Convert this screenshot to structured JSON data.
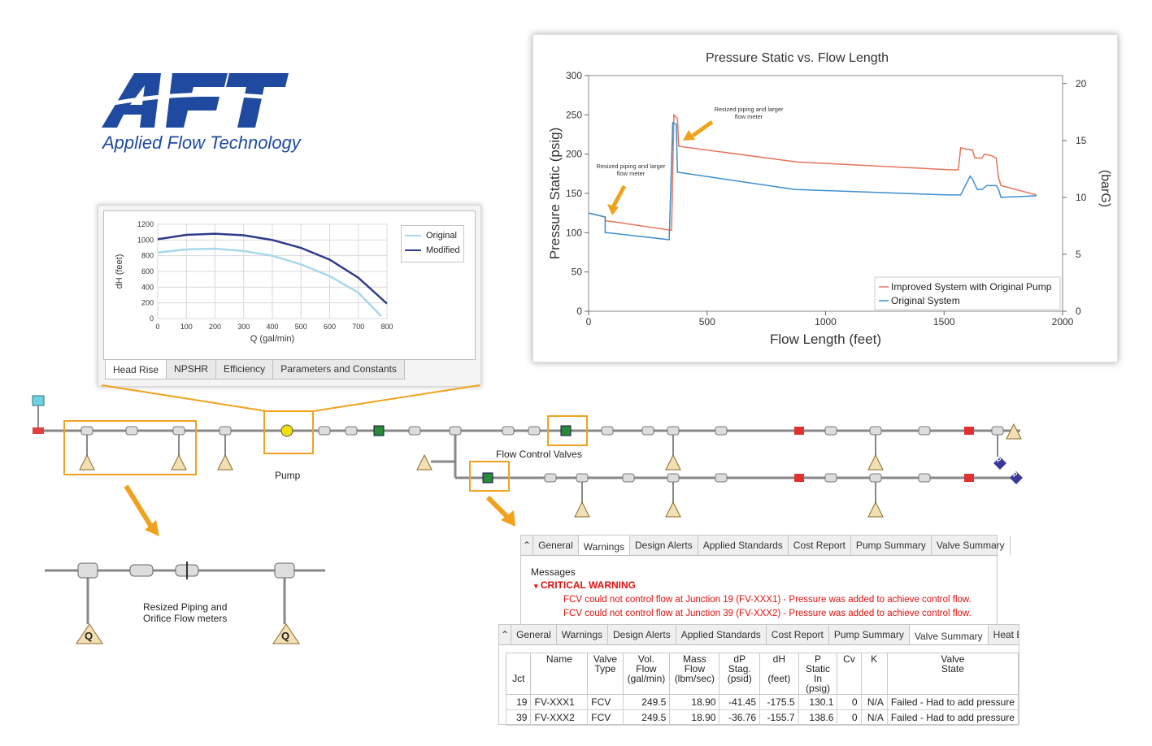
{
  "logo": {
    "brand_text": "AFT",
    "tagline": "Applied Flow Technology"
  },
  "pump_curve": {
    "tabs": [
      "Head Rise",
      "NPSHR",
      "Efficiency",
      "Parameters and Constants"
    ],
    "active_tab": "Head Rise",
    "legend": [
      "Original",
      "Modified"
    ],
    "colors": {
      "original": "#a8d8ea",
      "modified": "#2e3a8c"
    }
  },
  "schematic": {
    "pump_label": "Pump",
    "fcv_label": "Flow Control Valves",
    "detail_label_line1": "Resized Piping and",
    "detail_label_line2": "Orifice Flow meters",
    "orifice_symbol": "Q",
    "pressure_symbol": "P",
    "accent": "#f0a21f"
  },
  "messages_panel": {
    "tabs": [
      "General",
      "Warnings",
      "Design Alerts",
      "Applied Standards",
      "Cost Report",
      "Pump Summary",
      "Valve Summary"
    ],
    "active_tab": "Warnings",
    "heading": "Messages",
    "critical_label": "CRITICAL WARNING",
    "messages": [
      "FCV could not control flow at Junction 19 (FV-XXX1) - Pressure was added to achieve control flow.",
      "FCV could not control flow at Junction 39 (FV-XXX2) - Pressure was added to achieve control flow."
    ]
  },
  "valve_panel": {
    "tabs": [
      "General",
      "Warnings",
      "Design Alerts",
      "Applied Standards",
      "Cost Report",
      "Pump Summary",
      "Valve Summary",
      "Heat Excl"
    ],
    "active_tab": "Valve Summary",
    "columns": [
      [
        "",
        "",
        "Jct"
      ],
      [
        "Name",
        "",
        ""
      ],
      [
        "Valve",
        "Type",
        ""
      ],
      [
        "Vol.",
        "Flow",
        "(gal/min)"
      ],
      [
        "Mass",
        "Flow",
        "(lbm/sec)"
      ],
      [
        "dP",
        "Stag.",
        "(psid)"
      ],
      [
        "dH",
        "",
        "(feet)"
      ],
      [
        "P Static",
        "In",
        "(psig)"
      ],
      [
        "Cv",
        "",
        ""
      ],
      [
        "K",
        "",
        ""
      ],
      [
        "Valve",
        "State",
        ""
      ]
    ],
    "rows": [
      [
        "19",
        "FV-XXX1",
        "FCV",
        "249.5",
        "18.90",
        "-41.45",
        "-175.5",
        "130.1",
        "0",
        "N/A",
        "Failed - Had to add pressure"
      ],
      [
        "39",
        "FV-XXX2",
        "FCV",
        "249.5",
        "18.90",
        "-36.76",
        "-155.7",
        "138.6",
        "0",
        "N/A",
        "Failed - Had to add pressure"
      ]
    ]
  },
  "chart_data": [
    {
      "type": "line",
      "title": "",
      "xlabel": "Q (gal/min)",
      "ylabel": "dH (feet)",
      "xlim": [
        0,
        800
      ],
      "ylim": [
        0,
        1200
      ],
      "xticks": [
        "0",
        "100",
        "200",
        "300",
        "400",
        "500",
        "600",
        "700",
        "800"
      ],
      "yticks": [
        "0",
        "200",
        "400",
        "600",
        "800",
        "1000",
        "1200"
      ],
      "series": [
        {
          "name": "Original",
          "color": "#a8d8ea",
          "x": [
            0,
            100,
            200,
            300,
            400,
            500,
            600,
            700,
            780
          ],
          "y": [
            840,
            880,
            890,
            860,
            800,
            690,
            540,
            330,
            30
          ]
        },
        {
          "name": "Modified",
          "color": "#2e3a8c",
          "x": [
            0,
            100,
            200,
            300,
            400,
            500,
            600,
            700,
            800
          ],
          "y": [
            1010,
            1065,
            1080,
            1060,
            1000,
            900,
            750,
            520,
            190
          ]
        }
      ]
    },
    {
      "type": "line",
      "title": "Pressure Static vs. Flow Length",
      "xlabel": "Flow Length (feet)",
      "ylabel": "Pressure Static (psig)",
      "y2label": "(barG)",
      "xlim": [
        0,
        2000
      ],
      "ylim": [
        0,
        300
      ],
      "y2lim": [
        0,
        20.7
      ],
      "xticks": [
        "0",
        "500",
        "1000",
        "1500",
        "2000"
      ],
      "yticks": [
        "0",
        "50",
        "100",
        "150",
        "200",
        "250",
        "300"
      ],
      "y2ticks": [
        "0",
        "5",
        "10",
        "15",
        "20"
      ],
      "annotations": [
        "Resized piping and larger flow meter",
        "Resized piping and larger flow meter"
      ],
      "series": [
        {
          "name": "Improved System with Original Pump",
          "color": "#e8735a",
          "x": [
            0,
            70,
            70,
            80,
            80,
            350,
            350,
            360,
            360,
            375,
            380,
            880,
            880,
            1530,
            1530,
            1540,
            1540,
            1560,
            1560,
            1570,
            1570,
            1620,
            1620,
            1630,
            1630,
            1660,
            1670,
            1700,
            1700,
            1720,
            1720,
            1730,
            1730,
            1740,
            1740,
            1890
          ],
          "y": [
            125,
            120,
            115,
            115,
            115,
            103,
            103,
            250,
            250,
            245,
            210,
            190,
            190,
            180,
            180,
            180,
            180,
            180,
            180,
            208,
            208,
            205,
            205,
            195,
            195,
            195,
            200,
            198,
            198,
            195,
            195,
            170,
            170,
            160,
            160,
            148
          ]
        },
        {
          "name": "Original System",
          "color": "#3b8fd0",
          "x": [
            0,
            70,
            70,
            80,
            80,
            340,
            340,
            355,
            355,
            370,
            375,
            870,
            870,
            1520,
            1520,
            1530,
            1530,
            1570,
            1570,
            1610,
            1610,
            1620,
            1620,
            1640,
            1640,
            1660,
            1680,
            1720,
            1720,
            1730,
            1730,
            1740,
            1740,
            1890
          ],
          "y": [
            125,
            120,
            100,
            100,
            100,
            91,
            91,
            240,
            240,
            238,
            177,
            155,
            155,
            148,
            148,
            148,
            148,
            148,
            148,
            172,
            172,
            168,
            168,
            155,
            155,
            155,
            160,
            160,
            160,
            155,
            155,
            145,
            145,
            147
          ]
        }
      ]
    }
  ]
}
